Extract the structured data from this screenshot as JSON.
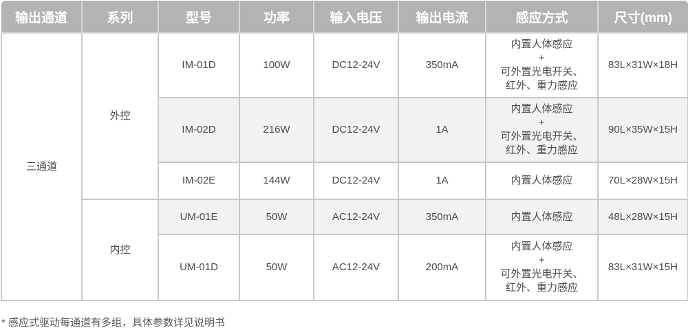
{
  "headers": [
    "输出通道",
    "系列",
    "型号",
    "功率",
    "输入电压",
    "输出电流",
    "感应方式",
    "尺寸(mm)"
  ],
  "channel": "三通道",
  "series": [
    "外控",
    "内控"
  ],
  "rows": [
    {
      "model": "IM-01D",
      "power": "100W",
      "input": "DC12-24V",
      "output": "350mA",
      "sensing": "内置人体感应\n+\n可外置光电开关、\n红外、重力感应",
      "size": "83L×31W×18H"
    },
    {
      "model": "IM-02D",
      "power": "216W",
      "input": "DC12-24V",
      "output": "1A",
      "sensing": "内置人体感应\n+\n可外置光电开关、\n红外、重力感应",
      "size": "90L×35W×15H"
    },
    {
      "model": "IM-02E",
      "power": "144W",
      "input": "DC12-24V",
      "output": "1A",
      "sensing": "内置人体感应",
      "size": "70L×28W×15H"
    },
    {
      "model": "UM-01E",
      "power": "50W",
      "input": "AC12-24V",
      "output": "350mA",
      "sensing": "内置人体感应",
      "size": "48L×28W×15H"
    },
    {
      "model": "UM-01D",
      "power": "50W",
      "input": "AC12-24V",
      "output": "200mA",
      "sensing": "内置人体感应\n+\n可外置光电开关、\n红外、重力感应",
      "size": "83L×31W×15H"
    }
  ],
  "footnote": "* 感应式驱动每通道有多组，具体参数详见说明书"
}
